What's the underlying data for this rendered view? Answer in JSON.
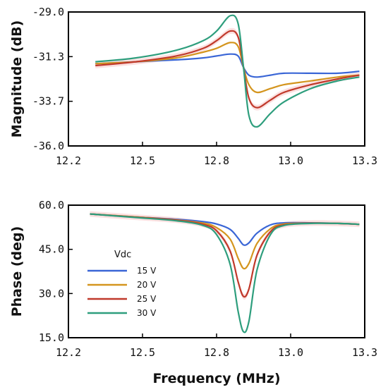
{
  "colors": {
    "15 V": "#3a66d6",
    "20 V": "#d4951e",
    "25 V": "#c0392b",
    "30 V": "#2e9e7d",
    "band": "#f4a6a6"
  },
  "chart_data": [
    {
      "type": "line",
      "panel": "top",
      "title": "",
      "xlabel": "",
      "ylabel": "Magnitude (dB)",
      "xlim": [
        12.2,
        13.3
      ],
      "ylim": [
        -36.0,
        -29.0
      ],
      "xticks": [
        "12.2",
        "12.5",
        "12.8",
        "13.0",
        "13.3"
      ],
      "yticks": [
        "-29.0",
        "-31.3",
        "-33.7",
        "-36.0"
      ],
      "x": [
        12.3,
        12.45,
        12.6,
        12.7,
        12.75,
        12.8,
        12.83,
        12.85,
        12.87,
        12.9,
        12.95,
        13.0,
        13.1,
        13.2,
        13.28
      ],
      "series": [
        {
          "name": "15 V",
          "values": [
            -31.7,
            -31.6,
            -31.5,
            -31.4,
            -31.3,
            -31.2,
            -31.3,
            -31.9,
            -32.3,
            -32.4,
            -32.3,
            -32.2,
            -32.2,
            -32.2,
            -32.1
          ]
        },
        {
          "name": "20 V",
          "values": [
            -31.7,
            -31.6,
            -31.4,
            -31.1,
            -30.9,
            -30.6,
            -30.8,
            -31.9,
            -32.8,
            -33.2,
            -33.0,
            -32.8,
            -32.6,
            -32.4,
            -32.3
          ]
        },
        {
          "name": "25 V",
          "values": [
            -31.8,
            -31.6,
            -31.3,
            -30.9,
            -30.5,
            -30.0,
            -30.3,
            -31.9,
            -33.5,
            -34.0,
            -33.6,
            -33.2,
            -32.8,
            -32.5,
            -32.3
          ]
        },
        {
          "name": "30 V",
          "values": [
            -31.6,
            -31.4,
            -31.0,
            -30.5,
            -30.0,
            -29.2,
            -29.6,
            -31.9,
            -34.4,
            -35.0,
            -34.3,
            -33.7,
            -33.0,
            -32.6,
            -32.4
          ]
        }
      ]
    },
    {
      "type": "line",
      "panel": "bottom",
      "title": "",
      "xlabel": "Frequency (MHz)",
      "ylabel": "Phase (deg)",
      "xlim": [
        12.2,
        13.3
      ],
      "ylim": [
        15.0,
        60.0
      ],
      "xticks": [
        "12.2",
        "12.5",
        "12.8",
        "13.0",
        "13.3"
      ],
      "yticks": [
        "60.0",
        "45.0",
        "30.0",
        "15.0"
      ],
      "legend_title": "Vdc",
      "legend_position": "left",
      "x": [
        12.28,
        12.45,
        12.6,
        12.7,
        12.75,
        12.8,
        12.83,
        12.85,
        12.87,
        12.9,
        12.95,
        13.0,
        13.1,
        13.2,
        13.28
      ],
      "series": [
        {
          "name": "15 V",
          "values": [
            57.0,
            56.0,
            55.2,
            54.4,
            53.6,
            51.8,
            48.8,
            46.5,
            47.2,
            50.5,
            53.3,
            54.0,
            54.0,
            53.8,
            53.5
          ]
        },
        {
          "name": "20 V",
          "values": [
            57.0,
            56.0,
            55.0,
            53.9,
            52.4,
            48.5,
            42.0,
            38.5,
            40.2,
            47.0,
            52.0,
            53.6,
            53.9,
            53.8,
            53.5
          ]
        },
        {
          "name": "25 V",
          "values": [
            57.0,
            55.9,
            54.9,
            53.5,
            51.3,
            44.5,
            34.0,
            29.0,
            31.5,
            43.0,
            51.0,
            53.3,
            53.9,
            53.8,
            53.5
          ]
        },
        {
          "name": "30 V",
          "values": [
            57.0,
            55.8,
            54.7,
            53.1,
            50.0,
            40.0,
            24.0,
            17.0,
            20.5,
            38.0,
            50.0,
            53.1,
            53.8,
            53.8,
            53.5
          ]
        }
      ]
    }
  ]
}
